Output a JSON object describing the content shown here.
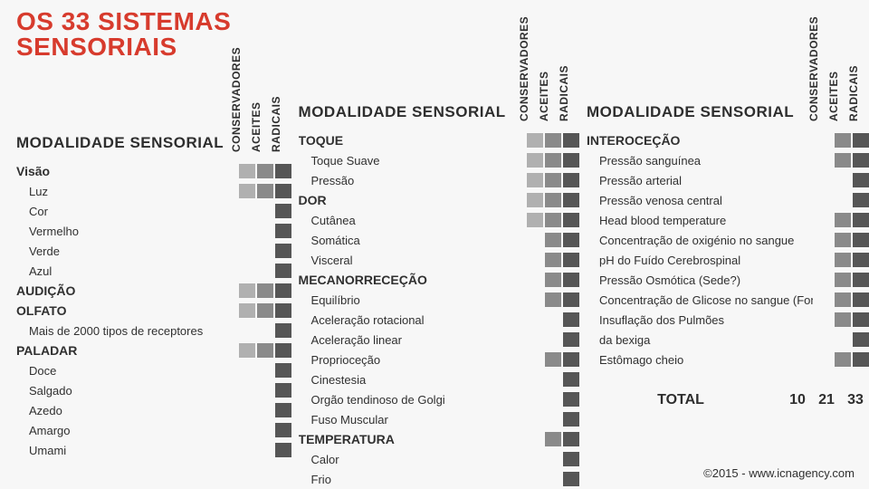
{
  "title": "OS 33 SISTEMAS SENSORIAIS",
  "section_header": "MODALIDE SENSORIAL",
  "section_header_1": "MODALIDADE SENSORIAL",
  "section_header_2": "MODALIDADE SENSORIAL",
  "section_header_3": "MODALIDADE SENSORIAL",
  "col_headers": {
    "conservadores": "CONSERVADORES",
    "aceites": "ACEITES",
    "radicais": "RADICAIS"
  },
  "colors": {
    "light": "#b0b0b0",
    "mid": "#8a8a8a",
    "dark": "#565656",
    "title": "#d73b2d",
    "text": "#303030",
    "bg": "#f7f7f7"
  },
  "col1": [
    {
      "label": "Visão",
      "cat": true,
      "cells": [
        "g1",
        "g2",
        "g3"
      ]
    },
    {
      "label": "Luz",
      "cells": [
        "g1",
        "g2",
        "g3"
      ]
    },
    {
      "label": "Cor",
      "cells": [
        "",
        "",
        "g3"
      ]
    },
    {
      "label": "Vermelho",
      "cells": [
        "",
        "",
        "g3"
      ]
    },
    {
      "label": "Verde",
      "cells": [
        "",
        "",
        "g3"
      ]
    },
    {
      "label": "Azul",
      "cells": [
        "",
        "",
        "g3"
      ]
    },
    {
      "label": "AUDIÇÃO",
      "cat": true,
      "cells": [
        "g1",
        "g2",
        "g3"
      ]
    },
    {
      "label": "OLFATO",
      "cat": true,
      "cells": [
        "g1",
        "g2",
        "g3"
      ]
    },
    {
      "label": "Mais de 2000 tipos de receptores",
      "cells": [
        "",
        "",
        "g3"
      ]
    },
    {
      "label": "PALADAR",
      "cat": true,
      "cells": [
        "g1",
        "g2",
        "g3"
      ]
    },
    {
      "label": "Doce",
      "cells": [
        "",
        "",
        "g3"
      ]
    },
    {
      "label": "Salgado",
      "cells": [
        "",
        "",
        "g3"
      ]
    },
    {
      "label": "Azedo",
      "cells": [
        "",
        "",
        "g3"
      ]
    },
    {
      "label": "Amargo",
      "cells": [
        "",
        "",
        "g3"
      ]
    },
    {
      "label": "Umami",
      "cells": [
        "",
        "",
        "g3"
      ]
    }
  ],
  "col2": [
    {
      "label": "TOQUE",
      "cat": true,
      "cells": [
        "g1",
        "g2",
        "g3"
      ]
    },
    {
      "label": "Toque Suave",
      "cells": [
        "g1",
        "g2",
        "g3"
      ]
    },
    {
      "label": "Pressão",
      "cells": [
        "g1",
        "g2",
        "g3"
      ]
    },
    {
      "label": "DOR",
      "cat": true,
      "cells": [
        "g1",
        "g2",
        "g3"
      ]
    },
    {
      "label": "Cutânea",
      "cells": [
        "g1",
        "g2",
        "g3"
      ]
    },
    {
      "label": "Somática",
      "cells": [
        "",
        "g2",
        "g3"
      ]
    },
    {
      "label": "Visceral",
      "cells": [
        "",
        "g2",
        "g3"
      ]
    },
    {
      "label": "MECANORRECEÇÃO",
      "cat": true,
      "cells": [
        "",
        "g2",
        "g3"
      ]
    },
    {
      "label": "Equilíbrio",
      "cells": [
        "",
        "g2",
        "g3"
      ]
    },
    {
      "label": "Aceleração rotacional",
      "cells": [
        "",
        "",
        "g3"
      ]
    },
    {
      "label": "Aceleração linear",
      "cells": [
        "",
        "",
        "g3"
      ]
    },
    {
      "label": "Proprioceção",
      "cells": [
        "",
        "g2",
        "g3"
      ]
    },
    {
      "label": "Cinestesia",
      "cells": [
        "",
        "",
        "g3"
      ]
    },
    {
      "label": "Orgão tendinoso de Golgi",
      "cells": [
        "",
        "",
        "g3"
      ]
    },
    {
      "label": "Fuso Muscular",
      "cells": [
        "",
        "",
        "g3"
      ]
    },
    {
      "label": "TEMPERATURA",
      "cat": true,
      "cells": [
        "",
        "g2",
        "g3"
      ]
    },
    {
      "label": "Calor",
      "cells": [
        "",
        "",
        "g3"
      ]
    },
    {
      "label": "Frio",
      "cells": [
        "",
        "",
        "g3"
      ]
    }
  ],
  "col3": [
    {
      "label": "INTEROCEÇÃO",
      "cat": true,
      "cells": [
        "",
        "g2",
        "g3"
      ]
    },
    {
      "label": "Pressão sanguínea",
      "cells": [
        "",
        "g2",
        "g3"
      ]
    },
    {
      "label": "Pressão arterial",
      "cells": [
        "",
        "",
        "g3"
      ]
    },
    {
      "label": "Pressão venosa central",
      "cells": [
        "",
        "",
        "g3"
      ]
    },
    {
      "label": "Head blood temperature",
      "cells": [
        "",
        "g2",
        "g3"
      ]
    },
    {
      "label": "Concentração de oxigénio no sangue",
      "cells": [
        "",
        "g2",
        "g3"
      ]
    },
    {
      "label": "pH do Fuído Cerebrospinal",
      "cells": [
        "",
        "g2",
        "g3"
      ]
    },
    {
      "label": "Pressão Osmótica (Sede?)",
      "cells": [
        "",
        "g2",
        "g3"
      ]
    },
    {
      "label": "Concentração de Glicose no sangue (Fome?)",
      "cells": [
        "",
        "g2",
        "g3"
      ]
    },
    {
      "label": "Insuflação dos Pulmões",
      "cells": [
        "",
        "g2",
        "g3"
      ]
    },
    {
      "label": "da bexiga",
      "cells": [
        "",
        "",
        "g3"
      ]
    },
    {
      "label": "Estômago cheio",
      "cells": [
        "",
        "g2",
        "g3"
      ]
    }
  ],
  "total": {
    "label": "TOTAL",
    "values": [
      "10",
      "21",
      "33"
    ]
  },
  "credit": "©2015 - www.icnagency.com"
}
